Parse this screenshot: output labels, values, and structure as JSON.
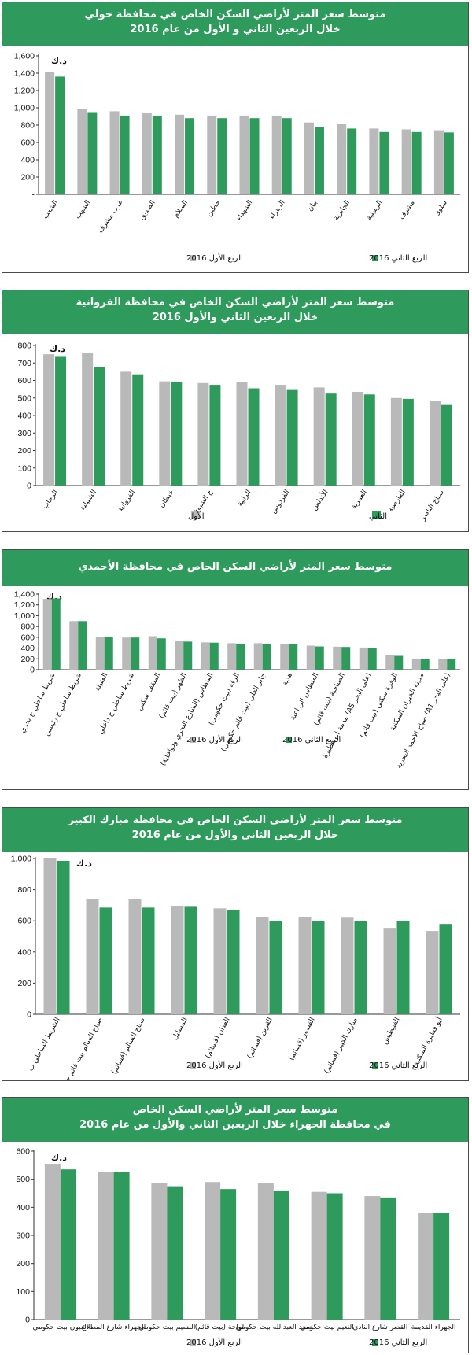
{
  "colors": {
    "header": "#2e9a5c",
    "q1": "#b9b9b9",
    "q2": "#2e9a5c"
  },
  "chart_data": [
    {
      "type": "bar",
      "title": "متوسط سعر المتر لأراضي السكن الخاص في محافظة حولي",
      "subtitle": "خلال الربعين الثاني و الأول من عام 2016",
      "unit": "د.ك",
      "categories": [
        "الشعب",
        "الشهب",
        "غرب مشرف",
        "الصديق",
        "السلام",
        "حطين",
        "الشهداء",
        "الزهراء",
        "بيان",
        "الجابرية",
        "الرميثية",
        "مشرف",
        "سلوى"
      ],
      "ylim": [
        0,
        1600
      ],
      "yticks": [
        "1,600",
        "1,400",
        "1,200",
        "1,000",
        "800",
        "600",
        "400",
        "200",
        "-"
      ],
      "series": [
        {
          "name": "الربع الأول 2016",
          "values": [
            1410,
            990,
            960,
            940,
            920,
            910,
            910,
            910,
            830,
            810,
            760,
            750,
            740
          ]
        },
        {
          "name": "الربع الثاني 2016",
          "values": [
            1360,
            950,
            910,
            900,
            880,
            880,
            880,
            880,
            780,
            760,
            720,
            720,
            715
          ]
        }
      ]
    },
    {
      "type": "bar",
      "title": "متوسط سعر المتر لأراضي السكن الخاص في محافظة الفروانية",
      "subtitle": "خلال الربعين الثاني والأول 2016",
      "unit": "د.ك",
      "categories": [
        "الرحاب",
        "الشبيلية",
        "الفروانية",
        "خيطان",
        "ج الشيوخ",
        "الرابية",
        "الفردوس",
        "الأندلس",
        "العمرية",
        "العارضية",
        "صباح الناصر"
      ],
      "ylim": [
        0,
        800
      ],
      "yticks": [
        "800",
        "700",
        "600",
        "500",
        "400",
        "300",
        "200",
        "100",
        "0"
      ],
      "series": [
        {
          "name": "الأول",
          "values": [
            750,
            755,
            650,
            595,
            585,
            590,
            575,
            560,
            535,
            500,
            485
          ]
        },
        {
          "name": "الثاني",
          "values": [
            735,
            675,
            635,
            590,
            575,
            555,
            550,
            525,
            520,
            495,
            460
          ]
        }
      ]
    },
    {
      "type": "bar",
      "title": "متوسط سعر المتر لأراضي السكن الخاص في محافظة الأحمدي",
      "unit": "د.ك",
      "categories": [
        "شريط ساحلي ج بحري",
        "شريط ساحلي ج رئيسي",
        "العقيلة",
        "شريط ساحلي ج داخلي",
        "المنقف سكني",
        "الظهر (بيت قائم)",
        "الفنطاس (الشارع البحري ودواخلية)",
        "الرقة (بيت حكومي)",
        "جابر العلي (بيت قائم حكومي)",
        "هدية",
        "الفنطاس الزراعية",
        "الصباحية (بيت قائم)",
        "مدينة ابو فطيرة (A5 على البحر)",
        "الوفرة سكني (بيت قائم)",
        "مدينة الخيران السكنية",
        "صباح الاحمد البحرية (A1 على البحر)"
      ],
      "ylim": [
        0,
        1400
      ],
      "yticks": [
        "1,400",
        "1,200",
        "1,000",
        "800",
        "600",
        "400",
        "200",
        "0"
      ],
      "series": [
        {
          "name": "الربع الأول 2016",
          "values": [
            1310,
            900,
            600,
            595,
            620,
            535,
            505,
            490,
            490,
            475,
            445,
            425,
            410,
            275,
            205,
            195
          ]
        },
        {
          "name": "الربع الثاني 2016",
          "values": [
            1320,
            900,
            600,
            595,
            580,
            520,
            500,
            480,
            475,
            475,
            430,
            420,
            400,
            255,
            205,
            195
          ]
        }
      ]
    },
    {
      "type": "bar",
      "title": "متوسط سعر المتر لأراضي السكن الخاص في محافظة مبارك الكبير",
      "subtitle": "خلال الربعين الثاني والأول من عام 2016",
      "unit": "د.ك",
      "categories": [
        "الشريط الساحلي ب",
        "صباح السالم بيت قائم حكومي",
        "صباح السالم (قسائم)",
        "المسايل",
        "العدان (قسائم)",
        "القرين (قسائم)",
        "القصور (قسائم)",
        "مبارك الكبير (قسائم)",
        "الفنيطيس",
        "أبو فطيرة السكنية"
      ],
      "ylim": [
        0,
        1000
      ],
      "yticks": [
        "1,000",
        "800",
        "600",
        "400",
        "200",
        "0"
      ],
      "series": [
        {
          "name": "الربع الأول 2016",
          "values": [
            1005,
            740,
            740,
            695,
            680,
            625,
            625,
            620,
            555,
            535
          ]
        },
        {
          "name": "الربع الثاني 2016",
          "values": [
            985,
            685,
            685,
            690,
            670,
            600,
            600,
            600,
            600,
            580
          ]
        }
      ]
    },
    {
      "type": "bar",
      "title": "متوسط سعر المتر لأراضي السكن الخاص",
      "subtitle": "في محافظة الجهراء خلال الربعين الثاني والأول من عام 2016",
      "unit": "د.ك",
      "categories": [
        "العيون بيت حكومي",
        "الجهراء شارع المطلاع",
        "النسيم بيت حكومي",
        "الواحة (بيت قائم)",
        "سعد العبدالله بيت حكومي",
        "النعيم بيت حكومي",
        "القصر شارع النادي",
        "الجهراء القديمة"
      ],
      "ylim": [
        0,
        600
      ],
      "yticks": [
        "600",
        "500",
        "400",
        "300",
        "200",
        "100",
        "0"
      ],
      "series": [
        {
          "name": "الربع الأول 2016",
          "values": [
            555,
            525,
            485,
            490,
            485,
            455,
            440,
            380
          ]
        },
        {
          "name": "الربع الثاني 2016",
          "values": [
            535,
            525,
            475,
            465,
            460,
            450,
            435,
            380
          ]
        }
      ]
    }
  ]
}
